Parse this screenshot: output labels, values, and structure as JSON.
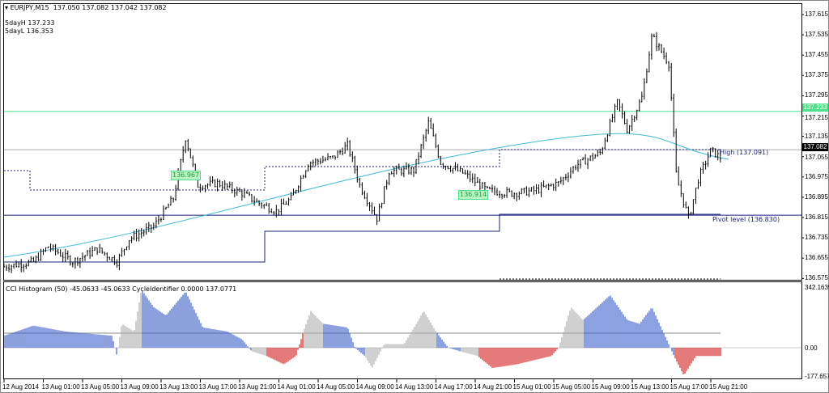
{
  "header": {
    "symbol": "EURJPY,M15",
    "ohlc": "137.050 137.082 137.042 137.082",
    "day_high": "5dayH 137.233",
    "day_low": "5dayL 136.353"
  },
  "indicator_header": "CCI Histogram (50) -45.0633 -45.0633  CycleIdentifier 0.0000 137.0771",
  "labels": {
    "high": "High (137.091)",
    "pivot": "Pivot level (136.830)",
    "box1": "136.967",
    "box2": "136.914"
  },
  "price_axis": [
    "137.615",
    "137.535",
    "137.455",
    "137.375",
    "137.295",
    "137.215",
    "137.135",
    "137.055",
    "136.975",
    "136.895",
    "136.815",
    "136.735",
    "136.655",
    "136.575"
  ],
  "price_tags": {
    "green_level": "137.233",
    "current": "137.082"
  },
  "indicator_axis": {
    "max": "342.1639",
    "zero": "0.00",
    "min": "-177.6571"
  },
  "time_axis": [
    "12 Aug 2014",
    "13 Aug 01:00",
    "13 Aug 05:00",
    "13 Aug 09:00",
    "13 Aug 13:00",
    "13 Aug 17:00",
    "13 Aug 21:00",
    "14 Aug 01:00",
    "14 Aug 05:00",
    "14 Aug 09:00",
    "14 Aug 13:00",
    "14 Aug 17:00",
    "14 Aug 21:00",
    "15 Aug 01:00",
    "15 Aug 05:00",
    "15 Aug 09:00",
    "15 Aug 13:00",
    "15 Aug 17:00",
    "15 Aug 21:00"
  ],
  "colors": {
    "green_level": "#4ee08a",
    "pivot": "#1a237e",
    "ma": "#41b8d8",
    "cci_up": "#3f62c9",
    "cci_down": "#d32020",
    "cci_neutral": "#b0b0b0",
    "current_tag": "#000000"
  },
  "chart_data": [
    {
      "type": "ohlc",
      "symbol": "EURJPY",
      "timeframe": "M15",
      "ylim": [
        136.575,
        137.655
      ],
      "close_path": [
        [
          "2014-08-12 21:00",
          136.62
        ],
        [
          "2014-08-13 00:00",
          136.64
        ],
        [
          "2014-08-13 01:30",
          136.7
        ],
        [
          "2014-08-13 04:00",
          136.64
        ],
        [
          "2014-08-13 06:30",
          136.69
        ],
        [
          "2014-08-13 08:30",
          136.64
        ],
        [
          "2014-08-13 09:45",
          136.73
        ],
        [
          "2014-08-13 12:15",
          136.78
        ],
        [
          "2014-08-13 14:15",
          136.89
        ],
        [
          "2014-08-13 15:30",
          137.13
        ],
        [
          "2014-08-13 16:45",
          136.94
        ],
        [
          "2014-08-13 18:45",
          136.95
        ],
        [
          "2014-08-13 21:15",
          136.91
        ],
        [
          "2014-08-13 23:00",
          136.87
        ],
        [
          "2014-08-14 00:45",
          136.84
        ],
        [
          "2014-08-14 02:15",
          136.89
        ],
        [
          "2014-08-14 04:00",
          137.03
        ],
        [
          "2014-08-14 06:30",
          137.05
        ],
        [
          "2014-08-14 08:00",
          137.1
        ],
        [
          "2014-08-14 09:15",
          136.94
        ],
        [
          "2014-08-14 11:00",
          136.81
        ],
        [
          "2014-08-14 12:15",
          137.0
        ],
        [
          "2014-08-14 14:45",
          137.0
        ],
        [
          "2014-08-14 16:15",
          137.19
        ],
        [
          "2014-08-14 17:30",
          137.03
        ],
        [
          "2014-08-14 19:45",
          136.99
        ],
        [
          "2014-08-14 22:15",
          136.92
        ],
        [
          "2014-08-15 00:45",
          136.91
        ],
        [
          "2014-08-15 03:00",
          136.92
        ],
        [
          "2014-08-15 05:30",
          136.95
        ],
        [
          "2014-08-15 07:15",
          137.02
        ],
        [
          "2014-08-15 09:45",
          137.07
        ],
        [
          "2014-08-15 11:30",
          137.27
        ],
        [
          "2014-08-15 12:30",
          137.16
        ],
        [
          "2014-08-15 14:00",
          137.29
        ],
        [
          "2014-08-15 15:00",
          137.53
        ],
        [
          "2014-08-15 16:45",
          137.42
        ],
        [
          "2014-08-15 17:30",
          136.97
        ],
        [
          "2014-08-15 18:45",
          136.81
        ],
        [
          "2014-08-15 19:45",
          136.97
        ],
        [
          "2014-08-15 21:00",
          137.08
        ],
        [
          "2014-08-15 22:00",
          137.05
        ]
      ],
      "levels": {
        "green_level": 137.233,
        "current": 137.082,
        "high": 137.091,
        "pivot": 136.83
      }
    },
    {
      "type": "histogram",
      "name": "CCI Histogram (50)",
      "ylim": [
        -177.6571,
        342.1639
      ],
      "points": [
        [
          "2014-08-12 21:00",
          65,
          "up"
        ],
        [
          "2014-08-13 00:00",
          120,
          "up"
        ],
        [
          "2014-08-13 03:15",
          88,
          "up"
        ],
        [
          "2014-08-13 08:00",
          65,
          "up"
        ],
        [
          "2014-08-13 08:30",
          -45,
          "neutral"
        ],
        [
          "2014-08-13 09:00",
          130,
          "neutral"
        ],
        [
          "2014-08-13 10:15",
          88,
          "neutral"
        ],
        [
          "2014-08-13 11:00",
          315,
          "up"
        ],
        [
          "2014-08-13 12:15",
          220,
          "up"
        ],
        [
          "2014-08-13 13:30",
          175,
          "up"
        ],
        [
          "2014-08-13 15:30",
          305,
          "up"
        ],
        [
          "2014-08-13 17:15",
          110,
          "up"
        ],
        [
          "2014-08-13 19:45",
          88,
          "up"
        ],
        [
          "2014-08-13 21:15",
          45,
          "up"
        ],
        [
          "2014-08-13 22:15",
          -20,
          "neutral"
        ],
        [
          "2014-08-13 23:45",
          -45,
          "down"
        ],
        [
          "2014-08-14 01:30",
          -90,
          "down"
        ],
        [
          "2014-08-14 02:45",
          -45,
          "down"
        ],
        [
          "2014-08-14 03:30",
          88,
          "neutral"
        ],
        [
          "2014-08-14 04:15",
          200,
          "neutral"
        ],
        [
          "2014-08-14 05:30",
          130,
          "up"
        ],
        [
          "2014-08-14 08:00",
          110,
          "up"
        ],
        [
          "2014-08-14 08:45",
          0,
          "up"
        ],
        [
          "2014-08-14 09:45",
          -45,
          "neutral"
        ],
        [
          "2014-08-14 10:30",
          -110,
          "neutral"
        ],
        [
          "2014-08-14 11:45",
          20,
          "neutral"
        ],
        [
          "2014-08-14 13:45",
          20,
          "neutral"
        ],
        [
          "2014-08-14 15:00",
          130,
          "neutral"
        ],
        [
          "2014-08-14 15:45",
          200,
          "neutral"
        ],
        [
          "2014-08-14 17:00",
          88,
          "up"
        ],
        [
          "2014-08-14 18:15",
          0,
          "up"
        ],
        [
          "2014-08-14 19:30",
          -20,
          "neutral"
        ],
        [
          "2014-08-14 21:15",
          -45,
          "down"
        ],
        [
          "2014-08-14 22:45",
          -110,
          "down"
        ],
        [
          "2014-08-15 01:15",
          -90,
          "down"
        ],
        [
          "2014-08-15 04:45",
          -45,
          "down"
        ],
        [
          "2014-08-15 05:30",
          0,
          "neutral"
        ],
        [
          "2014-08-15 06:45",
          220,
          "neutral"
        ],
        [
          "2014-08-15 08:00",
          150,
          "up"
        ],
        [
          "2014-08-15 10:45",
          285,
          "up"
        ],
        [
          "2014-08-15 12:30",
          150,
          "up"
        ],
        [
          "2014-08-15 13:45",
          130,
          "up"
        ],
        [
          "2014-08-15 15:00",
          220,
          "up"
        ],
        [
          "2014-08-15 16:30",
          45,
          "up"
        ],
        [
          "2014-08-15 17:15",
          -45,
          "down"
        ],
        [
          "2014-08-15 18:15",
          -150,
          "down"
        ],
        [
          "2014-08-15 19:30",
          -45,
          "down"
        ],
        [
          "2014-08-15 22:00",
          -45,
          "down"
        ]
      ]
    }
  ]
}
